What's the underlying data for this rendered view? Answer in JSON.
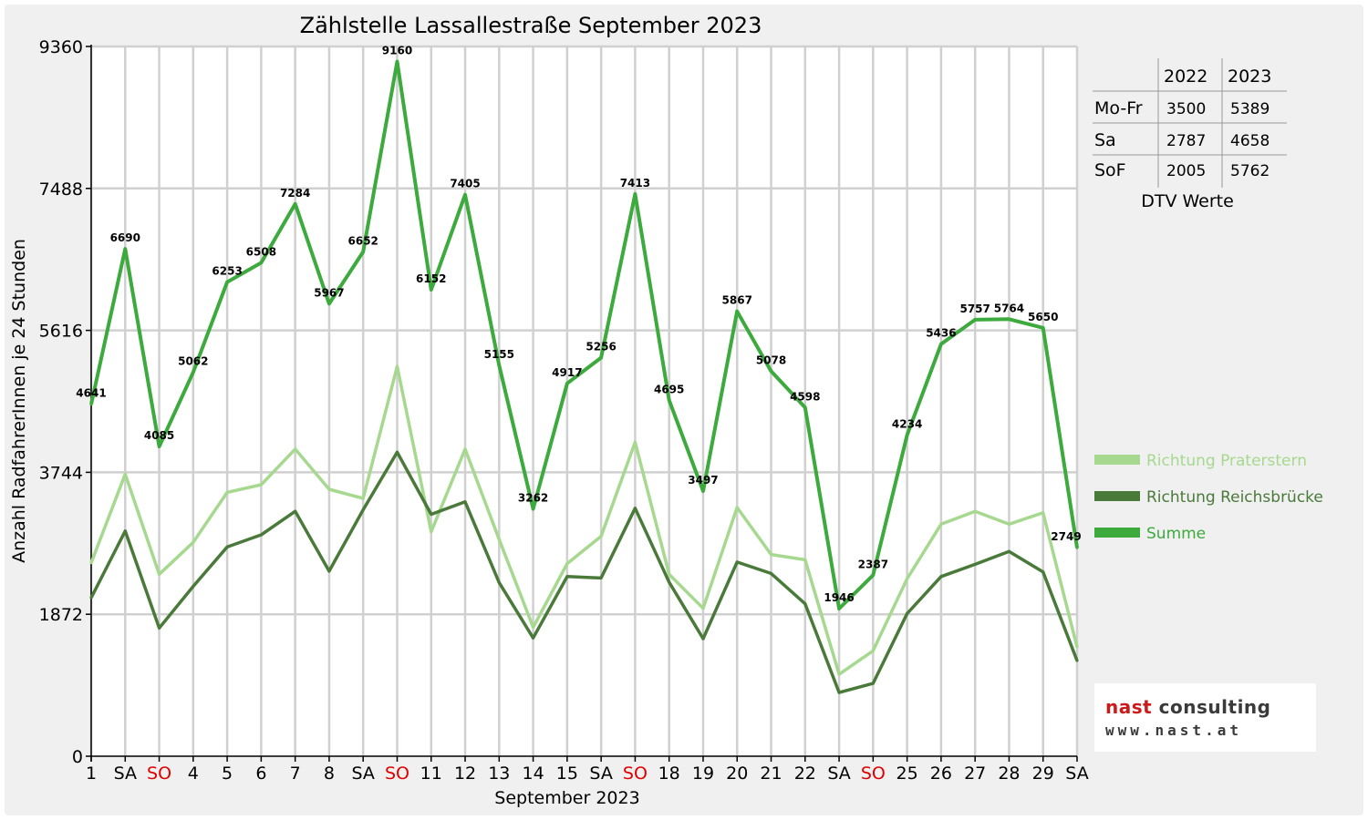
{
  "chart_data": {
    "type": "line",
    "title": "Zählstelle Lassallestraße September 2023",
    "xlabel": "September 2023",
    "ylabel": "Anzahl RadfahrerInnen je 24 Stunden",
    "ylim": [
      0,
      9360
    ],
    "y_ticks": [
      0,
      1872,
      3744,
      5616,
      7488,
      9360
    ],
    "grid": true,
    "legend_position": "right",
    "categories": [
      "1",
      "SA",
      "SO",
      "4",
      "5",
      "6",
      "7",
      "8",
      "SA",
      "SO",
      "11",
      "12",
      "13",
      "14",
      "15",
      "SA",
      "SO",
      "18",
      "19",
      "20",
      "21",
      "22",
      "SA",
      "SO",
      "25",
      "26",
      "27",
      "28",
      "29",
      "SA"
    ],
    "sunday_categories_color": "#e00000",
    "sunday_indices": [
      2,
      9,
      16,
      23
    ],
    "series": [
      {
        "name": "Richtung Praterstern",
        "color": "#a6d98f",
        "values": [
          2550,
          3720,
          2400,
          2820,
          3480,
          3580,
          4050,
          3520,
          3400,
          5140,
          2960,
          4050,
          2860,
          1700,
          2540,
          2900,
          4140,
          2400,
          1950,
          3280,
          2660,
          2590,
          1080,
          1390,
          2340,
          3060,
          3230,
          3060,
          3210,
          1440
        ]
      },
      {
        "name": "Richtung Reichsbrücke",
        "color": "#4a7a3a",
        "values": [
          2090,
          2970,
          1690,
          2240,
          2760,
          2920,
          3230,
          2440,
          3250,
          4010,
          3190,
          3355,
          2290,
          1560,
          2370,
          2350,
          3270,
          2295,
          1550,
          2560,
          2410,
          2010,
          840,
          960,
          1880,
          2370,
          2530,
          2700,
          2430,
          1260
        ]
      },
      {
        "name": "Summe",
        "color": "#3daa3d",
        "values": [
          4641,
          6690,
          4085,
          5062,
          6253,
          6508,
          7284,
          5967,
          6652,
          9160,
          6152,
          7405,
          5155,
          3262,
          4917,
          5256,
          7413,
          4695,
          3497,
          5867,
          5078,
          4598,
          1946,
          2387,
          4234,
          5436,
          5757,
          5764,
          5650,
          2749
        ]
      }
    ],
    "data_labels": [
      "4641",
      "6690",
      "4085",
      "5062",
      "6253",
      "6508",
      "7284",
      "5967",
      "6652",
      "9160",
      "6152",
      "7405",
      "5155",
      "3262",
      "4917",
      "5256",
      "7413",
      "4695",
      "3497",
      "5867",
      "5078",
      "4598",
      "1946",
      "2387",
      "4234",
      "5436",
      "5757",
      "5764",
      "5650",
      "2749"
    ]
  },
  "dtv_table": {
    "caption": "DTV Werte",
    "headers": [
      "",
      "2022",
      "2023"
    ],
    "rows": [
      [
        "Mo-Fr",
        "3500",
        "5389"
      ],
      [
        "Sa",
        "2787",
        "4658"
      ],
      [
        "SoF",
        "2005",
        "5762"
      ]
    ]
  },
  "logo": {
    "name_part1": "nast ",
    "name_part2": "consulting",
    "url": "www.nast.at"
  }
}
